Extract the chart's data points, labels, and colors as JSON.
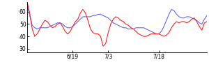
{
  "blue_y": [
    65,
    57,
    49,
    47,
    46,
    47,
    47,
    47,
    47,
    48,
    49,
    50,
    51,
    51,
    50,
    48,
    47,
    47,
    48,
    50,
    52,
    54,
    56,
    56,
    56,
    56,
    57,
    57,
    58,
    58,
    57,
    56,
    55,
    53,
    51,
    50,
    49,
    48,
    47,
    47,
    46,
    46,
    46,
    47,
    47,
    47,
    47,
    46,
    45,
    44,
    43,
    42,
    42,
    44,
    48,
    53,
    58,
    62,
    61,
    58,
    56,
    55,
    55,
    56,
    56,
    55,
    54,
    53,
    51,
    50,
    54,
    57
  ],
  "red_y": [
    68,
    59,
    46,
    40,
    42,
    46,
    50,
    53,
    52,
    49,
    47,
    48,
    50,
    51,
    48,
    44,
    42,
    44,
    48,
    52,
    54,
    59,
    62,
    59,
    53,
    46,
    43,
    42,
    42,
    40,
    32,
    34,
    43,
    50,
    54,
    56,
    55,
    53,
    52,
    50,
    49,
    47,
    46,
    44,
    42,
    41,
    40,
    40,
    41,
    42,
    42,
    42,
    42,
    41,
    40,
    41,
    43,
    47,
    50,
    52,
    51,
    52,
    52,
    51,
    52,
    54,
    55,
    52,
    48,
    45,
    51,
    52
  ],
  "xtick_positions": [
    18,
    32,
    52
  ],
  "xtick_labels": [
    "6/19",
    "7/3",
    "7/18"
  ],
  "ytick_positions": [
    30,
    40,
    50,
    60
  ],
  "ytick_labels": [
    "30",
    "40",
    "50",
    "60"
  ],
  "ylim": [
    27,
    68
  ],
  "xlim": [
    0,
    71
  ],
  "blue_color": "#6666ff",
  "red_color": "#ff2222",
  "bg_color": "#ffffff",
  "linewidth": 0.8,
  "figwidth": 3.0,
  "figheight": 0.96,
  "dpi": 100
}
